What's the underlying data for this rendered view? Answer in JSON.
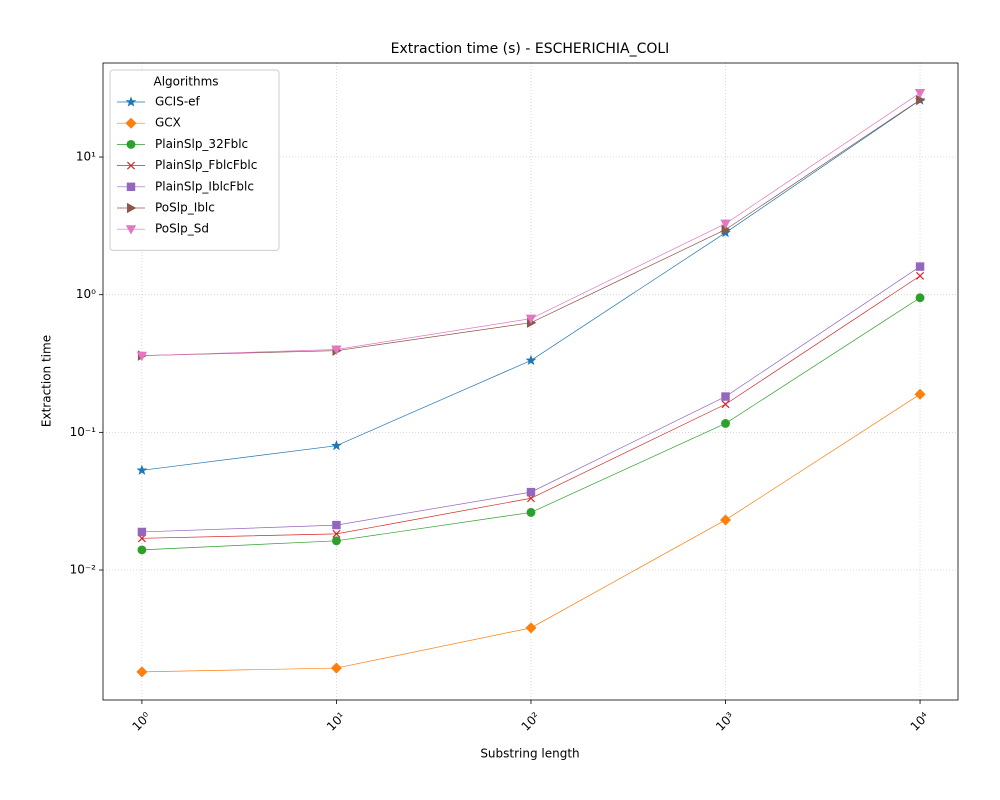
{
  "chart_data": {
    "type": "line",
    "title": "Extraction time (s) - ESCHERICHIA_COLI",
    "xlabel": "Substring length",
    "ylabel": "Extraction time",
    "xscale": "log",
    "yscale": "log",
    "grid": true,
    "legend_title": "Algorithms",
    "legend_loc": "upper left",
    "x": [
      1,
      10,
      100,
      1000,
      10000
    ],
    "xlim": [
      0.631,
      15670
    ],
    "ylim": [
      0.001137,
      48.2
    ],
    "xticks": [
      {
        "value": 1,
        "label": "10⁰"
      },
      {
        "value": 10,
        "label": "10¹"
      },
      {
        "value": 100,
        "label": "10²"
      },
      {
        "value": 1000,
        "label": "10³"
      },
      {
        "value": 10000,
        "label": "10⁴"
      }
    ],
    "yticks": [
      {
        "value": 0.01,
        "label": "10⁻²"
      },
      {
        "value": 0.1,
        "label": "10⁻¹"
      },
      {
        "value": 1,
        "label": "10⁰"
      },
      {
        "value": 10,
        "label": "10¹"
      }
    ],
    "series": [
      {
        "name": "GCIS-ef",
        "color": "#1f77b4",
        "marker": "star",
        "values": [
          0.053,
          0.08,
          0.333,
          2.82,
          25.9
        ]
      },
      {
        "name": "GCX",
        "color": "#ff7f0e",
        "marker": "diamond",
        "values": [
          0.00182,
          0.00194,
          0.0038,
          0.0231,
          0.189
        ]
      },
      {
        "name": "PlainSlp_32Fblc",
        "color": "#2ca02c",
        "marker": "circle",
        "values": [
          0.014,
          0.0163,
          0.0262,
          0.116,
          0.95
        ]
      },
      {
        "name": "PlainSlp_FblcFblc",
        "color": "#d62728",
        "marker": "x",
        "values": [
          0.017,
          0.0183,
          0.0332,
          0.16,
          1.37
        ]
      },
      {
        "name": "PlainSlp_IblcFblc",
        "color": "#9467bd",
        "marker": "square",
        "values": [
          0.0189,
          0.0212,
          0.0368,
          0.182,
          1.6
        ]
      },
      {
        "name": "PoSlp_Iblc",
        "color": "#8c564b",
        "marker": "triangle-right",
        "values": [
          0.361,
          0.392,
          0.626,
          2.97,
          26
        ]
      },
      {
        "name": "PoSlp_Sd",
        "color": "#e377c2",
        "marker": "triangle-down",
        "values": [
          0.36,
          0.4,
          0.67,
          3.28,
          29.2
        ]
      }
    ]
  }
}
